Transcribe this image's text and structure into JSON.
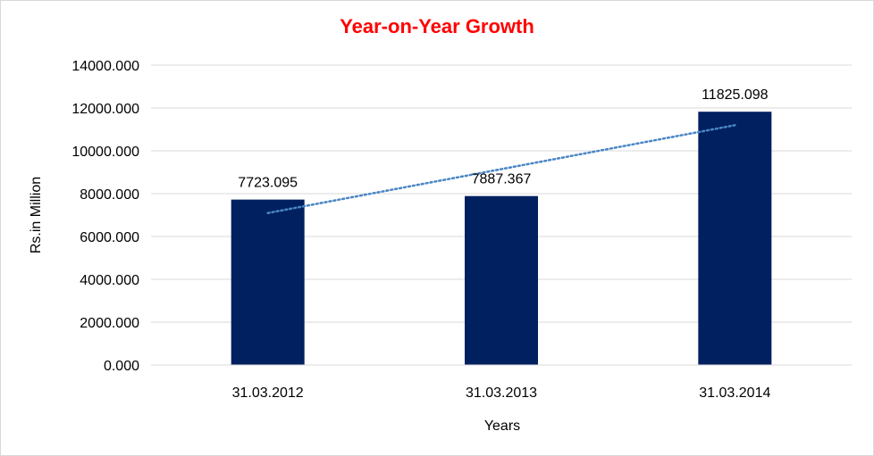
{
  "chart_data": {
    "type": "bar",
    "title": "Year-on-Year Growth",
    "xlabel": "Years",
    "ylabel": "Rs.in Million",
    "categories": [
      "31.03.2012",
      "31.03.2013",
      "31.03.2014"
    ],
    "values": [
      7723.095,
      7887.367,
      11825.098
    ],
    "value_labels": [
      "7723.095",
      "7887.367",
      "11825.098"
    ],
    "ylim": [
      0,
      14000
    ],
    "yticks": [
      "0.000",
      "2000.000",
      "4000.000",
      "6000.000",
      "8000.000",
      "10000.000",
      "12000.000",
      "14000.000"
    ],
    "grid": true,
    "legend": "none",
    "trendline": {
      "type": "linear",
      "style": "dotted"
    },
    "colors": {
      "bar": "#002060",
      "title": "#ff0000",
      "trendline": "#4a86c5",
      "grid": "#d9d9d9"
    }
  }
}
